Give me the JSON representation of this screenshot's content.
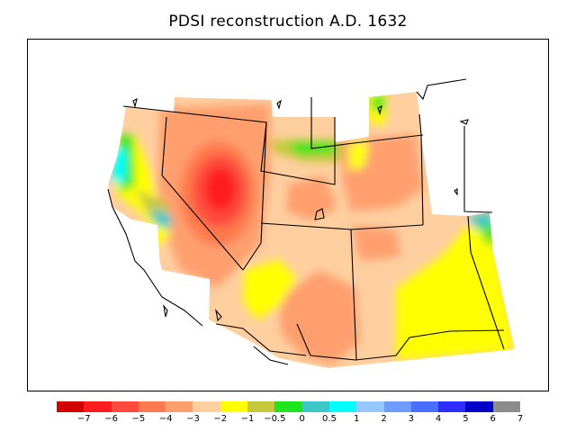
{
  "title": "PDSI reconstruction A.D. 1632",
  "colorbar": {
    "colors": [
      "#d30000",
      "#ff1c1c",
      "#ff4a3c",
      "#ff7a4e",
      "#ff9f6e",
      "#ffcfa0",
      "#ffff00",
      "#c8c83c",
      "#1ee61e",
      "#3cc8c8",
      "#00ffff",
      "#96c8ff",
      "#6e9bff",
      "#4a6eff",
      "#2d2dff",
      "#0000c8",
      "#8c8c8c"
    ],
    "labels": [
      "−7",
      "−6",
      "−5",
      "−4",
      "−3",
      "−2",
      "−1",
      "−0.5",
      "0",
      "0.5",
      "1",
      "2",
      "3",
      "4",
      "5",
      "6",
      "7"
    ]
  }
}
